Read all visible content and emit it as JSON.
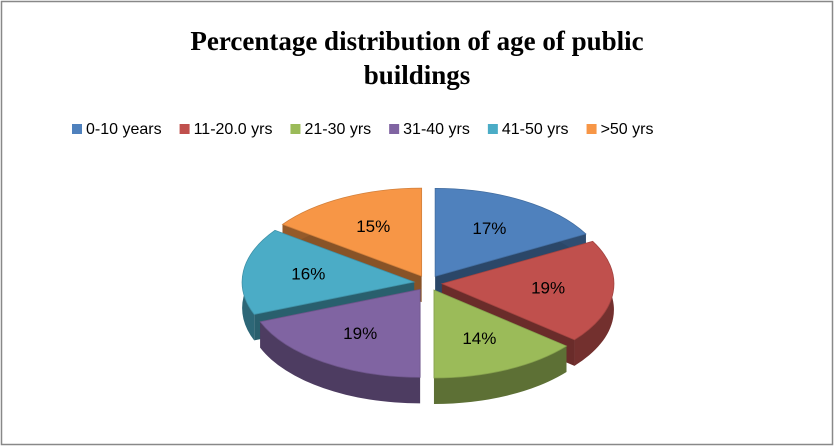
{
  "chart_data": {
    "type": "pie",
    "title": "Percentage distribution of age of public buildings",
    "categories": [
      "0-10 years",
      "11-20.0 yrs",
      "21-30 yrs",
      "31-40 yrs",
      "41-50 yrs",
      ">50 yrs"
    ],
    "values": [
      17,
      19,
      14,
      19,
      16,
      15
    ],
    "value_labels": [
      "17%",
      "19%",
      "14%",
      "19%",
      "16%",
      "15%"
    ],
    "colors": [
      "#4f81bd",
      "#c0504d",
      "#9bbb59",
      "#8064a2",
      "#4bacc6",
      "#f79646"
    ],
    "legend": "top"
  }
}
